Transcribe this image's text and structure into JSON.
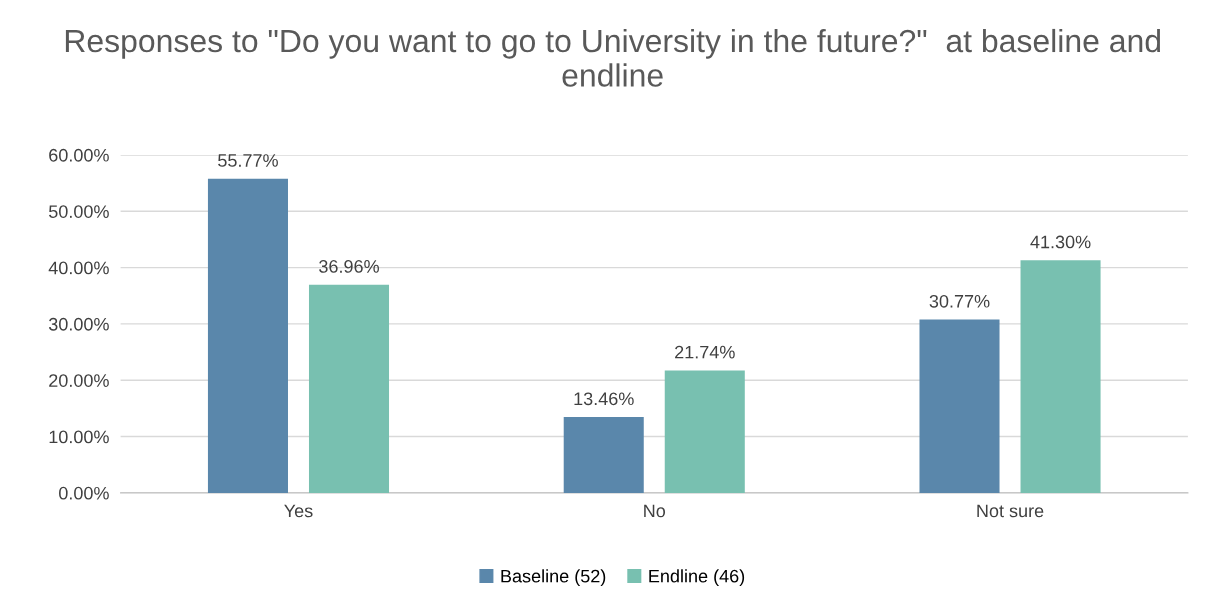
{
  "chart_data": {
    "type": "bar",
    "title": "Responses to \"Do you want to go to University in the future?\"  at baseline and endline",
    "categories": [
      "Yes",
      "No",
      "Not sure"
    ],
    "series": [
      {
        "name": "Baseline (52)",
        "color": "#5a87ab",
        "values": [
          55.77,
          13.46,
          30.77
        ],
        "value_labels": [
          "55.77%",
          "13.46%",
          "30.77%"
        ]
      },
      {
        "name": "Endline (46)",
        "color": "#78c0b0",
        "values": [
          36.96,
          21.74,
          41.3
        ],
        "value_labels": [
          "36.96%",
          "21.74%",
          "41.30%"
        ]
      }
    ],
    "ylim": [
      0,
      60
    ],
    "yticks": [
      {
        "value": 0,
        "label": "0.00%"
      },
      {
        "value": 10,
        "label": "10.00%"
      },
      {
        "value": 20,
        "label": "20.00%"
      },
      {
        "value": 30,
        "label": "30.00%"
      },
      {
        "value": 40,
        "label": "40.00%"
      },
      {
        "value": 50,
        "label": "50.00%"
      },
      {
        "value": 60,
        "label": "60.00%"
      }
    ],
    "grid": "y",
    "legend": "bottom"
  }
}
